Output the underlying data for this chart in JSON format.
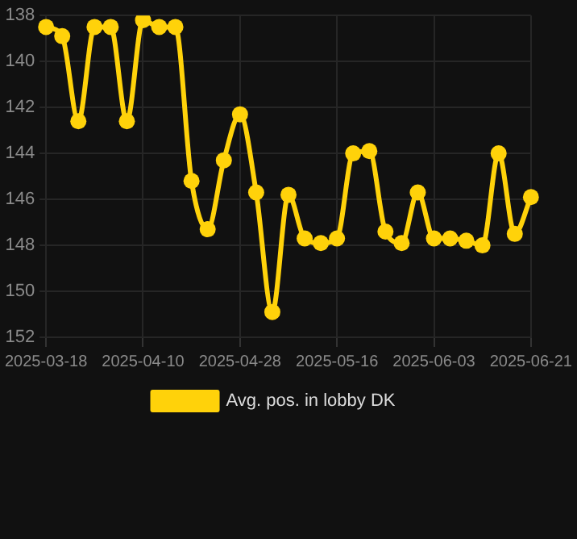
{
  "chart_data": {
    "type": "line",
    "categories": [
      "2025-03-18",
      null,
      null,
      null,
      null,
      null,
      "2025-04-10",
      null,
      null,
      null,
      null,
      null,
      "2025-04-28",
      null,
      null,
      null,
      null,
      null,
      "2025-05-16",
      null,
      null,
      null,
      null,
      null,
      "2025-06-03",
      null,
      null,
      null,
      null,
      null,
      "2025-06-21"
    ],
    "series": [
      {
        "name": "Avg. pos. in lobby DK",
        "color": "#ffd20a",
        "values": [
          138.5,
          138.9,
          142.6,
          138.5,
          138.5,
          142.6,
          138.2,
          138.5,
          138.5,
          145.2,
          147.3,
          144.3,
          142.3,
          145.7,
          150.9,
          145.8,
          147.7,
          147.9,
          147.7,
          144.0,
          143.9,
          147.4,
          147.9,
          145.7,
          147.7,
          147.7,
          147.8,
          148.0,
          144.0,
          147.5,
          145.9
        ]
      }
    ],
    "ylim": [
      152,
      138
    ],
    "yticks": [
      138,
      140,
      142,
      144,
      146,
      148,
      150,
      152
    ],
    "grid": true,
    "legend": "bottom",
    "marker": "circle",
    "line_style": "solid"
  }
}
